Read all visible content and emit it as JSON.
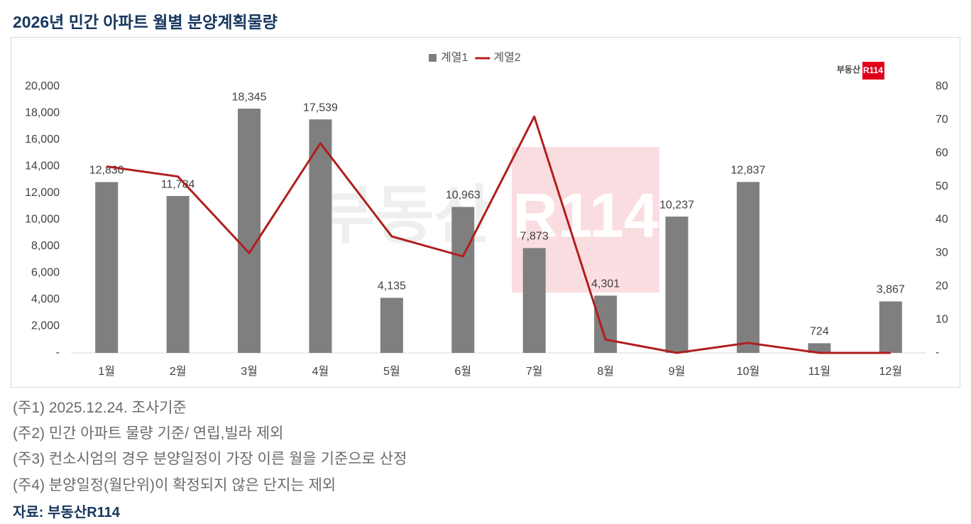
{
  "chart_data": {
    "type": "combo",
    "title": "2026년 민간 아파트 월별 분양계획물량",
    "categories": [
      "1월",
      "2월",
      "3월",
      "4월",
      "5월",
      "6월",
      "7월",
      "8월",
      "9월",
      "10월",
      "11월",
      "12월"
    ],
    "series": [
      {
        "name": "계열1",
        "type": "bar",
        "color": "#7f7f7f",
        "values": [
          12830,
          11784,
          18345,
          17539,
          4135,
          10963,
          7873,
          4301,
          10237,
          12837,
          724,
          3867
        ],
        "value_labels": [
          "12,830",
          "11,784",
          "18,345",
          "17,539",
          "4,135",
          "10,963",
          "7,873",
          "4,301",
          "10,237",
          "12,837",
          "724",
          "3,867"
        ]
      },
      {
        "name": "계열2",
        "type": "line",
        "axis": "y2",
        "color": "#b01e1e",
        "values": [
          56,
          53,
          30,
          63,
          35,
          29,
          71,
          4,
          0,
          3,
          0,
          0
        ]
      }
    ],
    "ylim": [
      0,
      20000
    ],
    "yticks": [
      {
        "value": 0,
        "label": "-"
      },
      {
        "value": 2000,
        "label": "2,000"
      },
      {
        "value": 4000,
        "label": "4,000"
      },
      {
        "value": 6000,
        "label": "6,000"
      },
      {
        "value": 8000,
        "label": "8,000"
      },
      {
        "value": 10000,
        "label": "10,000"
      },
      {
        "value": 12000,
        "label": "12,000"
      },
      {
        "value": 14000,
        "label": "14,000"
      },
      {
        "value": 16000,
        "label": "16,000"
      },
      {
        "value": 18000,
        "label": "18,000"
      },
      {
        "value": 20000,
        "label": "20,000"
      }
    ],
    "y2lim": [
      0,
      80
    ],
    "y2ticks": [
      {
        "value": 0,
        "label": "-"
      },
      10,
      20,
      30,
      40,
      50,
      60,
      70,
      80
    ],
    "legend": "top",
    "logo": "부동산",
    "logo_badge": "R114",
    "watermark": "부동산",
    "watermark_badge": "R114"
  },
  "notes": [
    "(주1) 2025.12.24. 조사기준",
    "(주2) 민간 아파트 물량 기준/ 연립,빌라 제외",
    "(주3) 컨소시엄의 경우 분양일정이 가장 이른 월을 기준으로 산정",
    "(주4) 분양일정(월단위)이 확정되지 않은 단지는 제외"
  ],
  "source": "자료: 부동산R114"
}
